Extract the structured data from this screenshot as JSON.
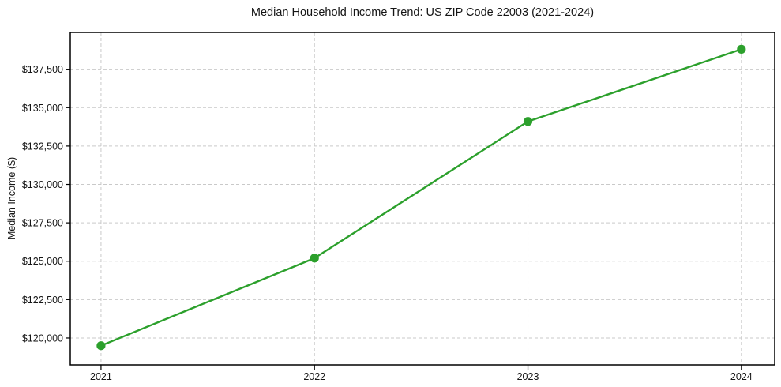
{
  "chart_data": {
    "type": "line",
    "title": "Median Household Income Trend: US ZIP Code 22003 (2021-2024)",
    "xlabel": "",
    "ylabel": "Median Income ($)",
    "x": [
      2021,
      2022,
      2023,
      2024
    ],
    "values": [
      119500,
      125200,
      134100,
      138800
    ],
    "series_name": "Median Household Income",
    "xticks": [
      2021,
      2022,
      2023,
      2024
    ],
    "xtick_labels": [
      "2021",
      "2022",
      "2023",
      "2024"
    ],
    "yticks": [
      120000,
      122500,
      125000,
      127500,
      130000,
      132500,
      135000,
      137500
    ],
    "ytick_labels": [
      "$120,000",
      "$122,500",
      "$125,000",
      "$127,500",
      "$130,000",
      "$132,500",
      "$135,000",
      "$137,500"
    ],
    "xlim": [
      2020.856,
      2024.156
    ],
    "ylim": [
      118250,
      139900
    ],
    "grid": true,
    "grid_style": "dashed",
    "legend": "none",
    "line_color": "#2ca02c",
    "marker_color": "#2ca02c",
    "grid_color": "#c9c9c9",
    "spine_color": "#000000",
    "background_color": "#ffffff"
  }
}
